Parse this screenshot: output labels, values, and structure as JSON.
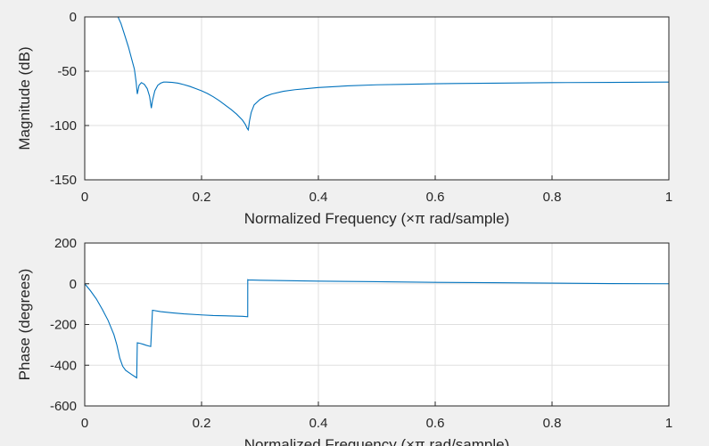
{
  "chart_data": [
    {
      "type": "line",
      "xlabel": "Normalized Frequency  (×π rad/sample)",
      "ylabel": "Magnitude (dB)",
      "xlim": [
        0,
        1
      ],
      "ylim": [
        -150,
        0
      ],
      "xticks": [
        "0",
        "0.2",
        "0.4",
        "0.6",
        "0.8",
        "1"
      ],
      "yticks": [
        "0",
        "-50",
        "-100",
        "-150"
      ],
      "grid": true,
      "line_color": "#0072BD",
      "x": [
        0,
        0.01,
        0.02,
        0.03,
        0.04,
        0.05,
        0.057,
        0.062,
        0.068,
        0.075,
        0.08,
        0.085,
        0.088,
        0.09,
        0.093,
        0.097,
        0.102,
        0.107,
        0.111,
        0.114,
        0.116,
        0.12,
        0.125,
        0.13,
        0.135,
        0.14,
        0.15,
        0.16,
        0.17,
        0.18,
        0.19,
        0.2,
        0.21,
        0.22,
        0.23,
        0.24,
        0.25,
        0.26,
        0.27,
        0.275,
        0.278,
        0.28,
        0.282,
        0.285,
        0.29,
        0.3,
        0.31,
        0.32,
        0.34,
        0.36,
        0.38,
        0.4,
        0.45,
        0.5,
        0.55,
        0.6,
        0.7,
        0.8,
        0.9,
        1.0
      ],
      "y": [
        0,
        0,
        0,
        0,
        0,
        0,
        0,
        -6,
        -16,
        -28,
        -38,
        -48,
        -60,
        -71,
        -63,
        -60.5,
        -62,
        -66,
        -73,
        -84,
        -77,
        -68,
        -63,
        -61,
        -60,
        -60,
        -60.3,
        -61,
        -62.4,
        -64,
        -66,
        -68,
        -70.5,
        -73.5,
        -77,
        -81,
        -85,
        -89.5,
        -95,
        -99,
        -102.5,
        -104,
        -96,
        -88,
        -81,
        -76,
        -73,
        -71,
        -68.5,
        -67,
        -66,
        -65,
        -63.5,
        -62.5,
        -62,
        -61.5,
        -61,
        -60.5,
        -60.3,
        -60
      ]
    },
    {
      "type": "line",
      "xlabel": "Normalized Frequency  (×π rad/sample)",
      "ylabel": "Phase (degrees)",
      "xlim": [
        0,
        1
      ],
      "ylim": [
        -600,
        200
      ],
      "xticks": [
        "0",
        "0.2",
        "0.4",
        "0.6",
        "0.8",
        "1"
      ],
      "yticks": [
        "200",
        "0",
        "-200",
        "-400",
        "-600"
      ],
      "grid": true,
      "line_color": "#0072BD",
      "x": [
        0,
        0.01,
        0.02,
        0.03,
        0.04,
        0.05,
        0.055,
        0.06,
        0.065,
        0.07,
        0.08,
        0.088,
        0.089,
        0.09,
        0.095,
        0.1,
        0.105,
        0.11,
        0.113,
        0.114,
        0.116,
        0.13,
        0.15,
        0.17,
        0.2,
        0.22,
        0.25,
        0.27,
        0.279,
        0.2791,
        0.28,
        0.3,
        0.4,
        0.5,
        0.6,
        0.7,
        0.8,
        0.9,
        1.0
      ],
      "y": [
        0,
        -35,
        -75,
        -125,
        -180,
        -250,
        -300,
        -365,
        -405,
        -425,
        -445,
        -460,
        -462,
        -290,
        -293,
        -297,
        -302,
        -306,
        -308,
        -250,
        -130,
        -137,
        -143,
        -148,
        -153,
        -156,
        -158,
        -160,
        -162,
        20,
        19,
        17,
        13,
        10,
        7,
        5,
        3,
        1,
        0
      ]
    }
  ]
}
